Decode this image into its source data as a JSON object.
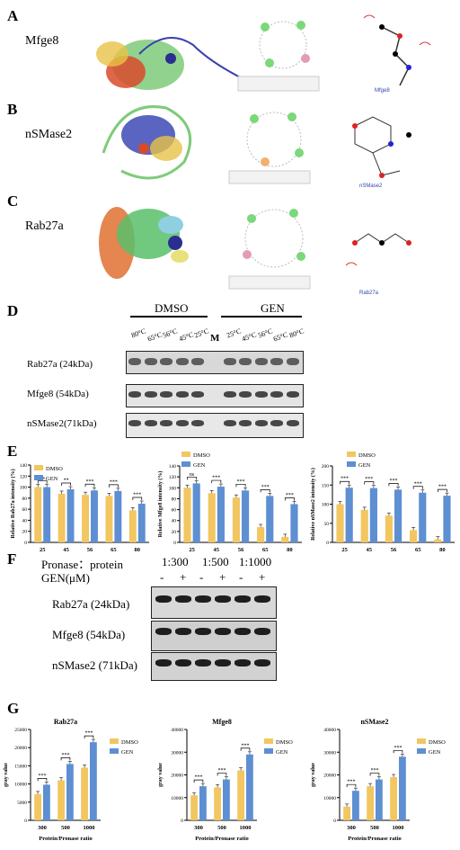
{
  "panels": {
    "A": {
      "letter": "A",
      "protein": "Mfge8",
      "small_label": "Mfge8"
    },
    "B": {
      "letter": "B",
      "protein": "nSMase2",
      "small_label": "nSMase2"
    },
    "C": {
      "letter": "C",
      "protein": "Rab27a",
      "small_label": "Rab27a"
    }
  },
  "panel_D": {
    "letter": "D",
    "groups": [
      "DMSO",
      "GEN"
    ],
    "lanes": [
      "80°C",
      "65°C",
      "56°C",
      "45°C",
      "25°C",
      "M",
      "25°C",
      "45°C",
      "56°C",
      "65°C",
      "80°C"
    ],
    "rows": [
      "Rab27a (24kDa)",
      "Mfge8 (54kDa)",
      "nSMase2(71kDa)"
    ]
  },
  "panel_E": {
    "letter": "E"
  },
  "panel_F": {
    "letter": "F",
    "ratio_label": "Pronase：protein",
    "gen_label": "GEN(μM)",
    "ratios": [
      "1:300",
      "1:500",
      "1:1000"
    ],
    "signs": [
      "-",
      "+",
      "-",
      "+",
      "-",
      "+"
    ],
    "rows": [
      "Rab27a (24kDa)",
      "Mfge8 (54kDa)",
      "nSMase2 (71kDa)"
    ]
  },
  "panel_G": {
    "letter": "G"
  },
  "colors": {
    "dmso": "#f2c661",
    "gen": "#5d8fd2"
  },
  "chart_data": [
    {
      "type": "bar",
      "panel": "E",
      "categories": [
        "25",
        "45",
        "56",
        "65",
        "80"
      ],
      "ylabel": "Relative Rab27a intensity (%)",
      "yticks": [
        "0",
        "20",
        "40",
        "60",
        "80",
        "100",
        "120",
        "140"
      ],
      "ylim": [
        0,
        140
      ],
      "legend": [
        "DMSO",
        "GEN"
      ],
      "significance": [
        "ns",
        "**",
        "***",
        "***",
        "***"
      ],
      "series": [
        {
          "name": "DMSO",
          "values": [
            100,
            88,
            86,
            84,
            58
          ]
        },
        {
          "name": "GEN",
          "values": [
            100,
            96,
            94,
            93,
            70
          ]
        }
      ]
    },
    {
      "type": "bar",
      "panel": "E",
      "categories": [
        "25",
        "45",
        "56",
        "65",
        "80"
      ],
      "ylabel": "Relative Mfge8 intensity (%)",
      "yticks": [
        "0",
        "20",
        "40",
        "60",
        "80",
        "100",
        "120",
        "140"
      ],
      "ylim": [
        0,
        140
      ],
      "legend": [
        "DMSO",
        "GEN"
      ],
      "significance": [
        "ns",
        "***",
        "***",
        "***",
        "***"
      ],
      "series": [
        {
          "name": "DMSO",
          "values": [
            100,
            90,
            82,
            28,
            10
          ]
        },
        {
          "name": "GEN",
          "values": [
            108,
            102,
            95,
            85,
            70
          ]
        }
      ]
    },
    {
      "type": "bar",
      "panel": "E",
      "categories": [
        "25",
        "45",
        "56",
        "65",
        "80"
      ],
      "ylabel": "Relative nSMase2 intensity (%)",
      "yticks": [
        "0",
        "50",
        "100",
        "150",
        "200"
      ],
      "ylim": [
        0,
        200
      ],
      "legend": [
        "DMSO",
        "GEN"
      ],
      "significance": [
        "***",
        "***",
        "***",
        "***",
        "***"
      ],
      "series": [
        {
          "name": "DMSO",
          "values": [
            100,
            85,
            70,
            32,
            8
          ]
        },
        {
          "name": "GEN",
          "values": [
            143,
            142,
            138,
            130,
            122
          ]
        }
      ]
    },
    {
      "type": "bar",
      "panel": "G",
      "title": "Rab27a",
      "categories": [
        "300",
        "500",
        "1000"
      ],
      "xlabel": "Protein/Pronase ratio",
      "ylabel": "gray value",
      "yticks": [
        "0",
        "5000",
        "10000",
        "15000",
        "20000",
        "25000"
      ],
      "ylim": [
        0,
        25000
      ],
      "legend": [
        "DMSO",
        "GEN"
      ],
      "significance": [
        "***",
        "***",
        "***"
      ],
      "series": [
        {
          "name": "DMSO",
          "values": [
            7200,
            11000,
            14500
          ]
        },
        {
          "name": "GEN",
          "values": [
            9800,
            15500,
            21500
          ]
        }
      ]
    },
    {
      "type": "bar",
      "panel": "G",
      "title": "Mfge8",
      "categories": [
        "300",
        "500",
        "1000"
      ],
      "xlabel": "Protein/Pronase ratio",
      "ylabel": "gray value",
      "yticks": [
        "0",
        "10000",
        "20000",
        "30000",
        "40000"
      ],
      "ylim": [
        0,
        40000
      ],
      "legend": [
        "DMSO",
        "GEN"
      ],
      "significance": [
        "***",
        "***",
        "***"
      ],
      "series": [
        {
          "name": "DMSO",
          "values": [
            11000,
            14500,
            22000
          ]
        },
        {
          "name": "GEN",
          "values": [
            15000,
            18000,
            29000
          ]
        }
      ]
    },
    {
      "type": "bar",
      "panel": "G",
      "title": "nSMase2",
      "categories": [
        "300",
        "500",
        "1000"
      ],
      "xlabel": "Protein/Pronase ratio",
      "ylabel": "gray value",
      "yticks": [
        "0",
        "10000",
        "20000",
        "30000",
        "40000"
      ],
      "ylim": [
        0,
        40000
      ],
      "legend": [
        "DMSO",
        "GEN"
      ],
      "significance": [
        "***",
        "***",
        "***"
      ],
      "series": [
        {
          "name": "DMSO",
          "values": [
            6000,
            15000,
            19000
          ]
        },
        {
          "name": "GEN",
          "values": [
            13000,
            18000,
            28000
          ]
        }
      ]
    }
  ]
}
